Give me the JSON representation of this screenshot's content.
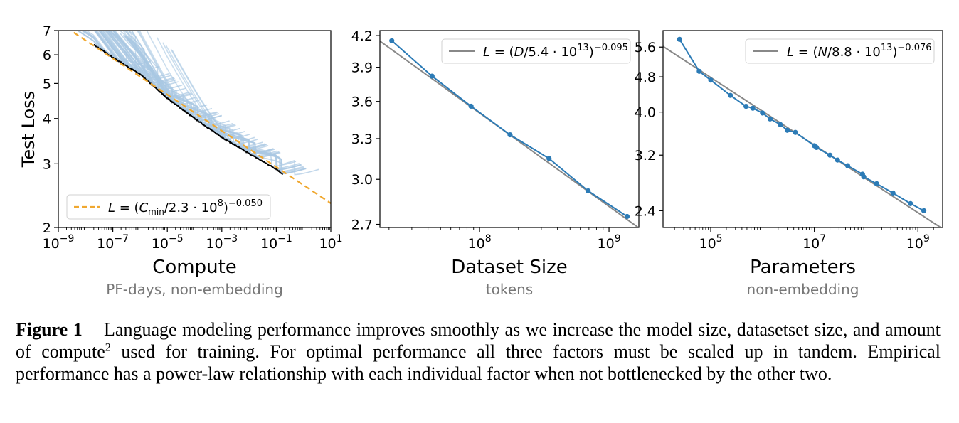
{
  "chart_data": [
    {
      "type": "line",
      "ylabel": "Test Loss",
      "xlabel": "Compute",
      "xsublabel": "PF-days, non-embedding",
      "xscale": "log",
      "yscale": "log",
      "xlim": [
        1e-09,
        10
      ],
      "ylim": [
        2,
        7
      ],
      "xticks": [
        "10−9",
        "10−7",
        "10−5",
        "10−3",
        "10−1",
        "101"
      ],
      "yticks": [
        "2",
        "3",
        "4",
        "5",
        "6",
        "7"
      ],
      "legend": "L = (Cmin/2.3 · 108)−0.050",
      "legend_position": "lower-left",
      "fit": {
        "scale": 230000000.0,
        "exponent": -0.05,
        "color": "#f0a830"
      },
      "frontier": {
        "color": "#000000",
        "x": [
          2e-08,
          1e-07,
          1e-06,
          1e-05,
          0.0001,
          0.001,
          0.01,
          0.1,
          0.18
        ],
        "y": [
          6.4,
          5.9,
          5.3,
          4.55,
          4.0,
          3.55,
          3.2,
          2.9,
          2.8
        ]
      },
      "curves_color": "#a9c8e3"
    },
    {
      "type": "line",
      "xlabel": "Dataset Size",
      "xsublabel": "tokens",
      "xscale": "log",
      "yscale": "log",
      "xlim": [
        17000000.0,
        1700000000.0
      ],
      "ylim": [
        2.68,
        4.25
      ],
      "xticks": [
        "108",
        "109"
      ],
      "yticks": [
        "2.7",
        "3.0",
        "3.3",
        "3.6",
        "3.9",
        "4.2"
      ],
      "legend": "L = (D/5.4 · 1013)−0.095",
      "legend_position": "upper-right",
      "fit": {
        "scale": 54000000000000.0,
        "exponent": -0.095,
        "color": "#888888"
      },
      "series": [
        {
          "name": "",
          "color": "#2c7bb6",
          "x": [
            21000000.0,
            43000000.0,
            86000000.0,
            172000000.0,
            344000000.0,
            690000000.0,
            1380000000.0
          ],
          "y": [
            4.15,
            3.82,
            3.56,
            3.33,
            3.15,
            2.92,
            2.75
          ]
        }
      ]
    },
    {
      "type": "line",
      "xlabel": "Parameters",
      "xsublabel": "non-embedding",
      "xscale": "log",
      "yscale": "log",
      "xlim": [
        12000.0,
        3000000000.0
      ],
      "ylim": [
        2.2,
        6.1
      ],
      "xticks": [
        "105",
        "107",
        "109"
      ],
      "yticks": [
        "2.4",
        "3.2",
        "4.0",
        "4.8",
        "5.6"
      ],
      "legend": "L = (N/8.8 · 1013)−0.076",
      "legend_position": "upper-right",
      "fit": {
        "scale": 88000000000000.0,
        "exponent": -0.076,
        "color": "#888888"
      },
      "series": [
        {
          "name": "",
          "color": "#2c7bb6",
          "x": [
            25000.0,
            60000.0,
            100000.0,
            240000.0,
            480000.0,
            650000.0,
            1000000.0,
            1400000.0,
            2200000.0,
            3000000.0,
            4300000.0,
            10000000.0,
            11000000.0,
            20000000.0,
            28000000.0,
            44000000.0,
            85000000.0,
            90000000.0,
            160000000.0,
            330000000.0,
            720000000.0,
            1300000000.0
          ],
          "y": [
            5.83,
            4.94,
            4.72,
            4.36,
            4.12,
            4.08,
            3.98,
            3.86,
            3.75,
            3.64,
            3.6,
            3.36,
            3.33,
            3.2,
            3.12,
            3.03,
            2.9,
            2.86,
            2.76,
            2.63,
            2.49,
            2.4
          ]
        }
      ]
    }
  ],
  "caption": {
    "label": "Figure 1",
    "text": "Language modeling performance improves smoothly as we increase the model size, datasetset size, and amount of compute",
    "footnote": "2",
    "text_after": " used for training. For optimal performance all three factors must be scaled up in tandem. Empirical performance has a power-law relationship with each individual factor when not bottlenecked by the other two."
  }
}
